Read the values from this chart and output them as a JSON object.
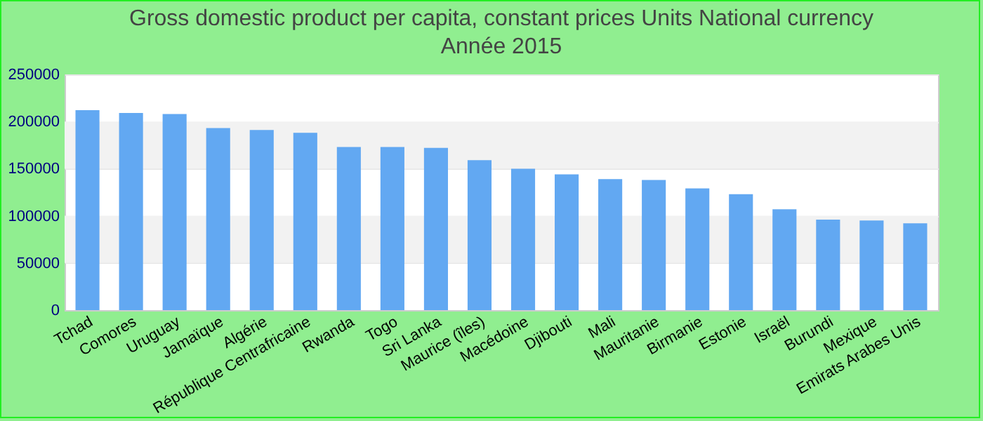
{
  "chart_data": {
    "type": "bar",
    "title": "Gross domestic product per capita, constant prices Units National currency",
    "subtitle": "Année 2015",
    "categories": [
      "Tchad",
      "Comores",
      "Uruguay",
      "Jamaïque",
      "Algérie",
      "République Centrafricaine",
      "Rwanda",
      "Togo",
      "Sri Lanka",
      "Maurice (îles)",
      "Macédoine",
      "Djibouti",
      "Mali",
      "Mauritanie",
      "Birmanie",
      "Estonie",
      "Israël",
      "Burundi",
      "Mexique",
      "Emirats Arabes Unis"
    ],
    "values": [
      212000,
      209000,
      208000,
      193000,
      191000,
      188000,
      173000,
      173000,
      172000,
      159000,
      150000,
      144000,
      139000,
      138000,
      129000,
      123000,
      107000,
      96000,
      95000,
      92000
    ],
    "color": "#62a8f2",
    "ylim": [
      0,
      250000
    ],
    "yticks": [
      0,
      50000,
      100000,
      150000,
      200000,
      250000
    ],
    "grid": "y"
  }
}
